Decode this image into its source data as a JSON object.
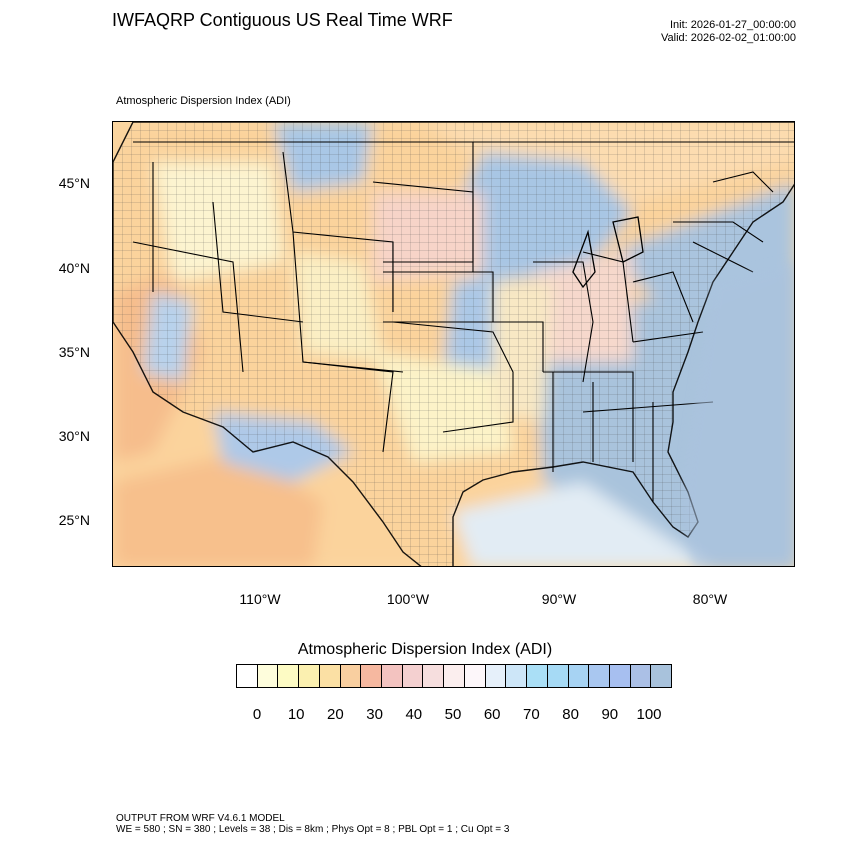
{
  "header": {
    "title": "IWFAQRP Contiguous US Real Time WRF",
    "init": "Init: 2026-01-27_00:00:00",
    "valid": "Valid: 2026-02-02_01:00:00"
  },
  "plot": {
    "subtitle": "Atmospheric Dispersion Index   (ADI)",
    "lat_labels": [
      "45°N",
      "40°N",
      "35°N",
      "30°N",
      "25°N"
    ],
    "lon_labels": [
      "110°W",
      "100°W",
      "90°W",
      "80°W"
    ]
  },
  "legend": {
    "title": "Atmospheric Dispersion Index  (ADI)",
    "labels": [
      "0",
      "10",
      "20",
      "30",
      "40",
      "50",
      "60",
      "70",
      "80",
      "90",
      "100"
    ],
    "colors": [
      "#ffffff",
      "#fefddc",
      "#fdfbc4",
      "#fbf0b0",
      "#fbe0a4",
      "#f9cfa0",
      "#f6b8a0",
      "#f3c3c0",
      "#f4d0d0",
      "#f6dede",
      "#fbeeee",
      "#fdf7fa",
      "#e6f0fa",
      "#cde6f8",
      "#aadff6",
      "#a6daf5",
      "#a7d3f3",
      "#a9c7f0",
      "#a7bff0",
      "#abc0e6",
      "#a8c2dc"
    ]
  },
  "footer": {
    "line1": "OUTPUT FROM WRF V4.6.1 MODEL",
    "line2": "WE = 580 ; SN = 380 ; Levels = 38 ; Dis = 8km ; Phys Opt = 8 ; PBL Opt = 1 ; Cu Opt = 3"
  }
}
